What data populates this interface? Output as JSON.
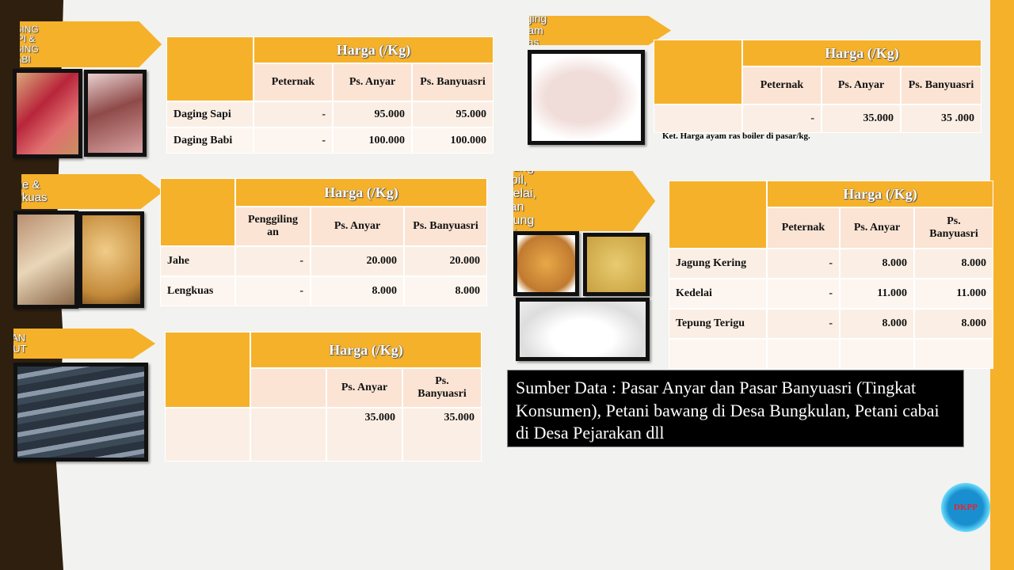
{
  "colors": {
    "accent": "#f6b12a",
    "band": "#2e1f0e"
  },
  "sections": {
    "sapi": {
      "label": "DAGING SAPI & DAGING BABI",
      "images": [
        "beef-image",
        "pork-image"
      ]
    },
    "jahe": {
      "label": "Jahe & Lengkuas",
      "images": [
        "ginger-image",
        "galangal-image"
      ]
    },
    "ikan": {
      "label": "IKAN LAUT",
      "images": [
        "fish-image"
      ]
    },
    "ayam": {
      "label": "Daging Ayam Ras",
      "images": [
        "chicken-image"
      ]
    },
    "jagung": {
      "label": "Jagung Pipil, Kedelai, dan Tepung Terigu",
      "images": [
        "corn-image",
        "soybean-image",
        "flour-image"
      ]
    }
  },
  "tables": {
    "sapi": {
      "header": "Harga (/Kg)",
      "columns": [
        "Peternak",
        "Ps. Anyar",
        "Ps. Banyuasri"
      ],
      "rows": [
        [
          "Daging Sapi",
          "-",
          "95.000",
          "95.000"
        ],
        [
          "Daging Babi",
          "-",
          "100.000",
          "100.000"
        ]
      ]
    },
    "jahe": {
      "header": "Harga (/Kg)",
      "columns": [
        "Penggiling an",
        "Ps. Anyar",
        "Ps. Banyuasri"
      ],
      "rows": [
        [
          "Jahe",
          "-",
          "20.000",
          "20.000"
        ],
        [
          "Lengkuas",
          "-",
          "8.000",
          "8.000"
        ]
      ]
    },
    "ikan": {
      "header": "Harga (/Kg)",
      "columns": [
        "",
        "Ps. Anyar",
        "Ps. Banyuasri"
      ],
      "rows": [
        [
          "",
          "",
          "35.000",
          "35.000"
        ]
      ]
    },
    "ayam": {
      "header": "Harga (/Kg)",
      "columns": [
        "Peternak",
        "Ps. Anyar",
        "Ps. Banyuasri"
      ],
      "rows": [
        [
          "",
          "-",
          "35.000",
          "35 .000"
        ]
      ]
    },
    "jagung": {
      "header": "Harga (/Kg)",
      "columns": [
        "Peternak",
        "Ps. Anyar",
        "Ps. Banyuasri"
      ],
      "rows": [
        [
          "Jagung Kering",
          "-",
          "8.000",
          "8.000"
        ],
        [
          "Kedelai",
          "-",
          "11.000",
          "11.000"
        ],
        [
          "Tepung Terigu",
          "-",
          "8.000",
          "8.000"
        ],
        [
          "",
          "",
          "",
          ""
        ]
      ]
    }
  },
  "ayam_note": "Ket. Harga ayam ras boiler di pasar/kg.",
  "source": "Sumber Data : Pasar Anyar dan Pasar Banyuasri (Tingkat Konsumen), Petani bawang di Desa Bungkulan, Petani cabai di Desa Pejarakan dll",
  "logo_text": "DKPP"
}
